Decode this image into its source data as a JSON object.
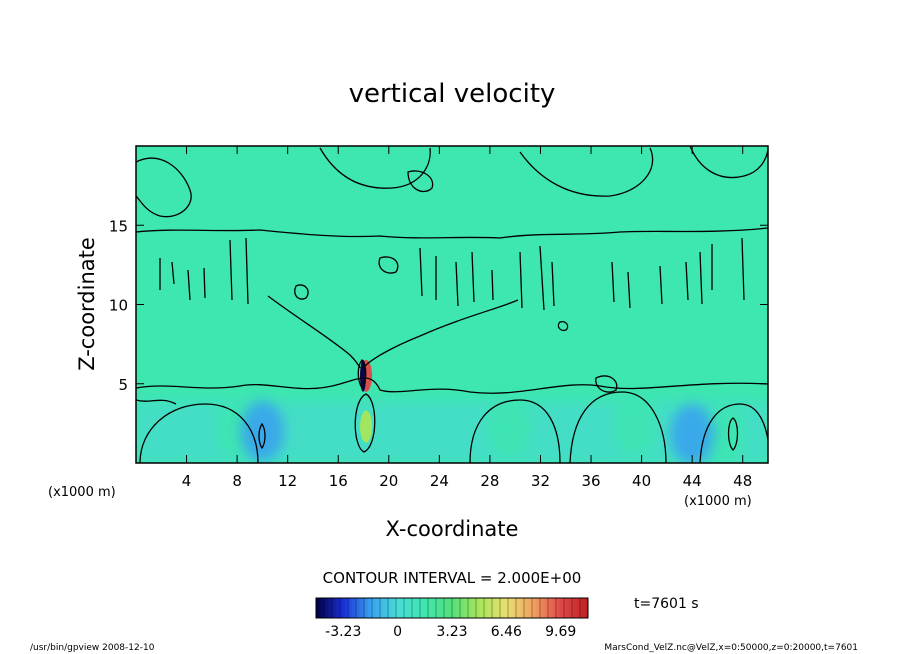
{
  "chart_data": {
    "type": "heatmap",
    "title": "vertical velocity",
    "xlabel": "X-coordinate",
    "ylabel": "Z-coordinate",
    "x_unit_left": "(x1000 m)",
    "x_unit_right": "(x1000 m)",
    "xlim": [
      0,
      50
    ],
    "ylim": [
      0,
      20
    ],
    "x_ticks": [
      "4",
      "8",
      "12",
      "16",
      "20",
      "24",
      "28",
      "32",
      "36",
      "40",
      "44",
      "48"
    ],
    "y_ticks": [
      "5",
      "10",
      "15"
    ],
    "contour_interval_label": "CONTOUR INTERVAL = 2.000E+00",
    "time_label": "t=7601 s",
    "colorbar": {
      "range": [
        -4.85,
        11.31
      ],
      "tick_labels": [
        "-3.23",
        "0",
        "3.23",
        "6.46",
        "9.69"
      ],
      "tick_values": [
        -3.23,
        0,
        3.23,
        6.46,
        9.69
      ],
      "colors": [
        "#000044",
        "#1a2fd6",
        "#38a0f0",
        "#49dcd8",
        "#3ee6b0",
        "#55e07a",
        "#a8e65a",
        "#e8e070",
        "#f0a060",
        "#e04848",
        "#c02020"
      ]
    },
    "features": [
      {
        "kind": "updraft",
        "x": 18.2,
        "z": 2.3,
        "peak": 5.5
      },
      {
        "kind": "updraft",
        "x": 18.2,
        "z": 5.5,
        "peak": 10.0
      },
      {
        "kind": "downdraft",
        "x": 18.2,
        "z": 5.5,
        "peak": -4.5
      },
      {
        "kind": "updraft",
        "x": 8.0,
        "z": 2.2,
        "peak": 1.6
      },
      {
        "kind": "updraft",
        "x": 29.5,
        "z": 2.3,
        "peak": 1.5
      },
      {
        "kind": "updraft",
        "x": 39.5,
        "z": 2.4,
        "peak": 1.8
      },
      {
        "kind": "updraft",
        "x": 46.5,
        "z": 1.9,
        "peak": 1.9
      },
      {
        "kind": "downdraft",
        "x": 10.0,
        "z": 2.0,
        "peak": -2.0
      },
      {
        "kind": "downdraft",
        "x": 44.0,
        "z": 1.8,
        "peak": -2.2
      }
    ]
  },
  "footer": {
    "left": "/usr/bin/gpview   2008-12-10",
    "right": "MarsCond_VelZ.nc@VelZ,x=0:50000,z=0:20000,t=7601"
  }
}
